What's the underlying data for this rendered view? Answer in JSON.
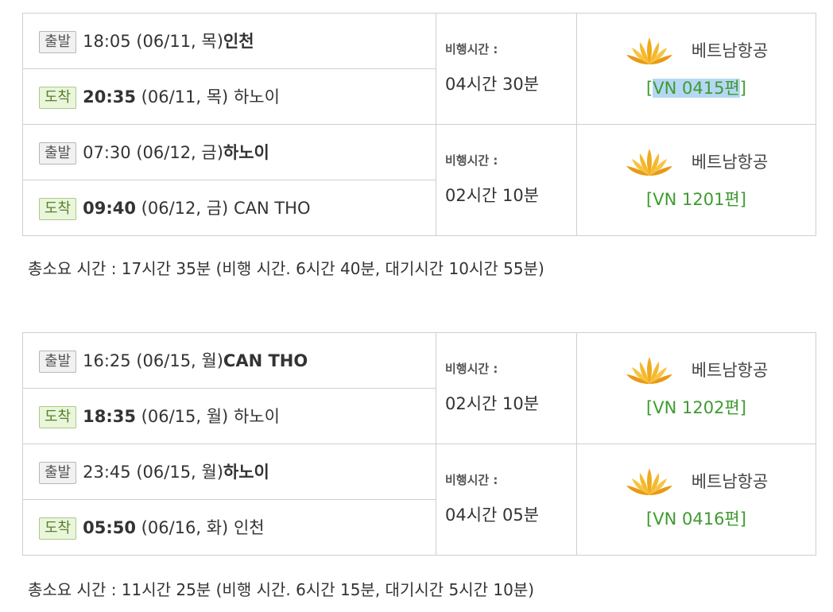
{
  "itineraries": [
    {
      "legs": [
        {
          "departure": {
            "badge": "출발",
            "time": "18:05",
            "date": "(06/11, 목)",
            "city": "인천"
          },
          "arrival": {
            "badge": "도착",
            "time": "20:35",
            "date": "(06/11, 목)",
            "city": "하노이"
          },
          "duration_label": "비행시간 :",
          "duration": "04시간 30분",
          "airline": "베트남항공",
          "flight_prefix": "[",
          "flight_code": "VN 0415편",
          "flight_suffix": "]"
        },
        {
          "departure": {
            "badge": "출발",
            "time": "07:30",
            "date": "(06/12, 금)",
            "city": "하노이"
          },
          "arrival": {
            "badge": "도착",
            "time": "09:40",
            "date": "(06/12, 금)",
            "city": "CAN THO"
          },
          "duration_label": "비행시간 :",
          "duration": "02시간 10분",
          "airline": "베트남항공",
          "flight_prefix": "[",
          "flight_code": "VN 1201편",
          "flight_suffix": "]"
        }
      ],
      "summary": "총소요 시간 : 17시간 35분 (비행 시간. 6시간 40분, 대기시간 10시간 55분)"
    },
    {
      "legs": [
        {
          "departure": {
            "badge": "출발",
            "time": "16:25",
            "date": "(06/15, 월)",
            "city": "CAN THO"
          },
          "arrival": {
            "badge": "도착",
            "time": "18:35",
            "date": "(06/15, 월)",
            "city": "하노이"
          },
          "duration_label": "비행시간 :",
          "duration": "02시간 10분",
          "airline": "베트남항공",
          "flight_prefix": "[",
          "flight_code": "VN 1202편",
          "flight_suffix": "]"
        },
        {
          "departure": {
            "badge": "출발",
            "time": "23:45",
            "date": "(06/15, 월)",
            "city": "하노이"
          },
          "arrival": {
            "badge": "도착",
            "time": "05:50",
            "date": "(06/16, 화)",
            "city": "인천"
          },
          "duration_label": "비행시간 :",
          "duration": "04시간 05분",
          "airline": "베트남항공",
          "flight_prefix": "[",
          "flight_code": "VN 0416편",
          "flight_suffix": "]"
        }
      ],
      "summary": "총소요 시간 : 11시간 25분 (비행 시간. 6시간 15분, 대기시간 5시간 10분)"
    }
  ],
  "icons": {
    "airline_logo": "vietnam-airlines-lotus-icon"
  },
  "colors": {
    "flight_code": "#3e9b2f",
    "arrival_badge_bg": "#e9f6da",
    "selection_highlight": "#b6d7f3",
    "border": "#cfcfcf"
  }
}
